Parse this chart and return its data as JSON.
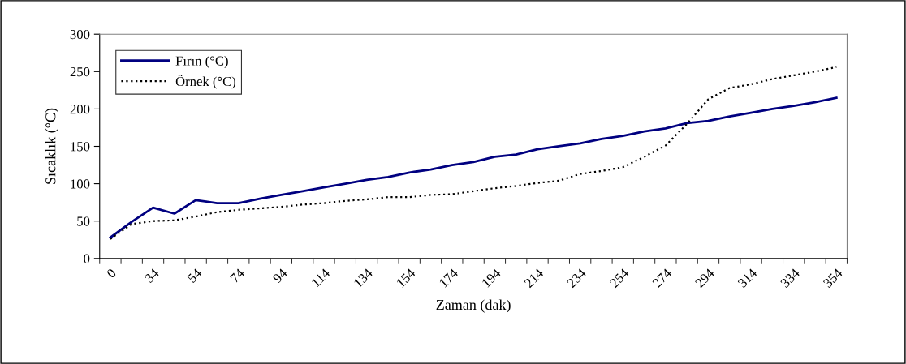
{
  "chart_data": {
    "type": "line",
    "xlabel": "Zaman (dak)",
    "ylabel": "Sıcaklık (°C)",
    "categories": [
      "0",
      null,
      "34",
      null,
      "54",
      null,
      "74",
      null,
      "94",
      null,
      "114",
      null,
      "134",
      null,
      "154",
      null,
      "174",
      null,
      "194",
      null,
      "214",
      null,
      "234",
      null,
      "254",
      null,
      "274",
      null,
      "294",
      null,
      "314",
      null,
      "334",
      null,
      "354"
    ],
    "series": [
      {
        "name": "Fırın (°C)",
        "color": "#000080",
        "line_style": "solid",
        "values": [
          28,
          49,
          68,
          60,
          78,
          74,
          74,
          80,
          85,
          90,
          95,
          100,
          105,
          109,
          115,
          119,
          125,
          129,
          136,
          139,
          146,
          150,
          154,
          160,
          164,
          170,
          174,
          181,
          184,
          190,
          195,
          200,
          204,
          209,
          215
        ]
      },
      {
        "name": "Örnek (°C)",
        "color": "#000000",
        "line_style": "dotted",
        "values": [
          26,
          46,
          50,
          51,
          56,
          62,
          65,
          67,
          69,
          72,
          74,
          77,
          79,
          82,
          82,
          85,
          86,
          90,
          94,
          97,
          101,
          104,
          113,
          117,
          122,
          136,
          151,
          180,
          213,
          228,
          233,
          240,
          245,
          250,
          256
        ]
      }
    ],
    "ylim": [
      0,
      300
    ],
    "yticks": [
      0,
      50,
      100,
      150,
      200,
      250,
      300
    ],
    "grid": false,
    "legend": "top left",
    "marker": "none"
  }
}
